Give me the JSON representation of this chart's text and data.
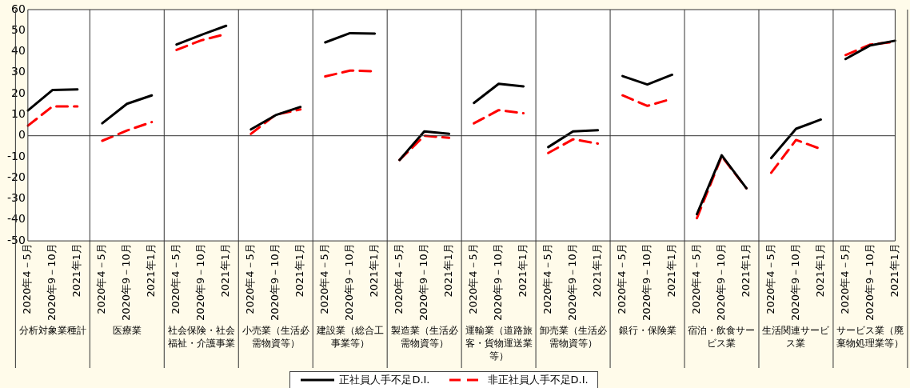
{
  "chart_data": {
    "type": "line",
    "categories": [
      "2020年4－5月",
      "2020年9－10月",
      "2021年1月",
      "2020年4－5月",
      "2020年9－10月",
      "2021年1月",
      "2020年4－5月",
      "2020年9－10月",
      "2021年1月",
      "2020年4－5月",
      "2020年9－10月",
      "2021年1月",
      "2020年4－5月",
      "2020年9－10月",
      "2021年1月",
      "2020年4－5月",
      "2020年9－10月",
      "2021年1月",
      "2020年4－5月",
      "2020年9－10月",
      "2021年1月",
      "2020年4－5月",
      "2020年9－10月",
      "2021年1月",
      "2020年4－5月",
      "2020年9－10月",
      "2021年1月",
      "2020年4－5月",
      "2020年9－10月",
      "2021年1月",
      "2020年4－5月",
      "2020年9－10月",
      "2021年1月",
      "2020年4－5月",
      "2020年9－10月",
      "2021年1月"
    ],
    "annotations": [
      "分析対象業種計",
      "医療業",
      "社会保険・社会福祉・介護事業",
      "小売業（生活必需物資等）",
      "建設業（総合工事業等）",
      "製造業（生活必需物資等）",
      "運輸業（道路旅客・貨物運送業等）",
      "卸売業（生活必需物資等）",
      "銀行・保険業",
      "宿泊・飲食サービス業",
      "生活関連サービス業",
      "サービス業（廃棄物処理業等）"
    ],
    "series": [
      {
        "name": "正社員人手不足D.I.",
        "color": "#000000",
        "line_style": "solid",
        "values": [
          12.0,
          21.8,
          22.0,
          5.9,
          15.2,
          19.2,
          43.4,
          48.0,
          52.3,
          3.0,
          9.8,
          13.7,
          44.4,
          48.8,
          48.6,
          -11.5,
          2.1,
          0.9,
          15.6,
          24.7,
          23.5,
          -5.4,
          2.1,
          2.6,
          28.4,
          24.4,
          29.0,
          -37.3,
          -9.3,
          -25.0,
          -10.6,
          3.3,
          7.7,
          36.5,
          43.0,
          45.2
        ]
      },
      {
        "name": "非正社員人手不足D.I.",
        "color": "#ff0000",
        "line_style": "dashed",
        "values": [
          4.8,
          14.0,
          14.0,
          -2.4,
          2.5,
          6.5,
          40.8,
          45.4,
          48.4,
          0.9,
          10.0,
          12.5,
          28.2,
          31.0,
          30.7,
          -11.5,
          0.0,
          -1.0,
          5.9,
          12.2,
          10.7,
          -8.2,
          -1.7,
          -3.7,
          19.2,
          14.2,
          17.6,
          -39.2,
          -9.8,
          -25.0,
          -17.6,
          -2.0,
          -6.3,
          38.4,
          43.4,
          44.7
        ]
      }
    ],
    "ylim": [
      -50,
      60
    ],
    "yticks": [
      -50,
      -40,
      -30,
      -20,
      -10,
      0,
      10,
      20,
      30,
      40,
      50,
      60
    ],
    "ref_lines": [
      {
        "axis": "y",
        "value": 0
      }
    ],
    "grid": false,
    "legend": "bottom",
    "marker": "none"
  }
}
